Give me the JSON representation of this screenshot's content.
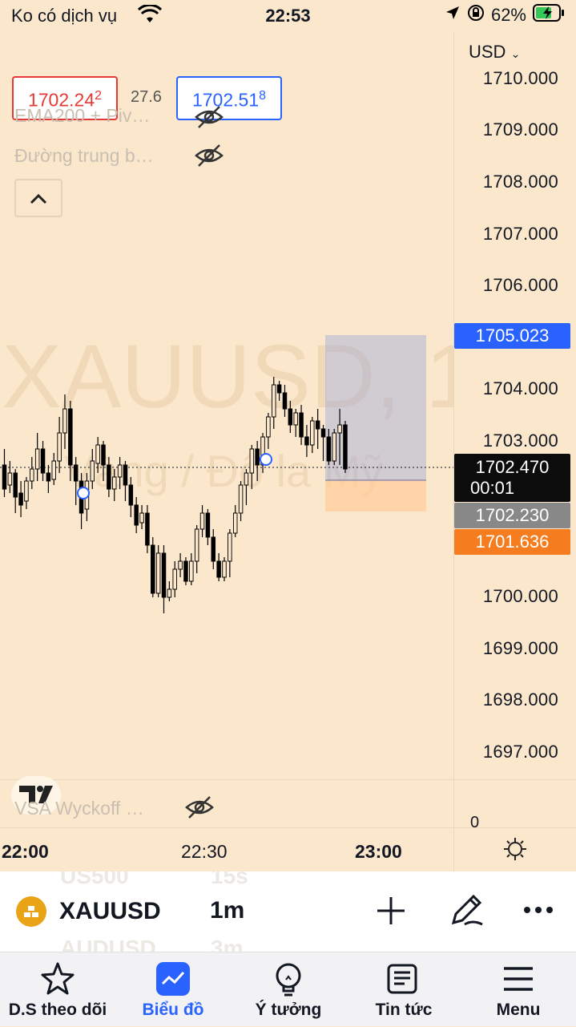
{
  "status_bar": {
    "carrier": "Ko có dịch vụ",
    "time": "22:53",
    "battery": "62%"
  },
  "chart": {
    "watermark_symbol": "XAUUSD, 1",
    "watermark_desc": "Vàng / Đô la Mỹ",
    "bid": {
      "main": "1702.24",
      "small": "2"
    },
    "spread": "27.6",
    "ask": {
      "main": "1702.51",
      "small": "8"
    },
    "indicators": [
      {
        "label": "EMA200 + Piv…"
      },
      {
        "label": "Đường trung b…"
      }
    ],
    "bottom_indicator": "VSA Wyckoff …",
    "pane_zero": "0",
    "currency": "USD",
    "price_ticks": [
      "1710.000",
      "1709.000",
      "1708.000",
      "1707.000",
      "1706.000",
      "1704.000",
      "1703.000",
      "1700.000",
      "1699.000",
      "1698.000",
      "1697.000"
    ],
    "labels": {
      "target": "1705.023",
      "last": "1702.470",
      "countdown": "00:01",
      "bid_line": "1702.230",
      "stop": "1701.636"
    },
    "time_ticks": [
      "22:00",
      "22:30",
      "23:00"
    ]
  },
  "toolbar": {
    "symbol": "XAUUSD",
    "interval": "1m",
    "ghost_above_symbol": "US500",
    "ghost_above_interval": "15s",
    "ghost_below_symbol": "AUDUSD",
    "ghost_below_interval": "3m"
  },
  "tabs": [
    {
      "label": "D.S theo dõi"
    },
    {
      "label": "Biểu đồ"
    },
    {
      "label": "Ý tưởng"
    },
    {
      "label": "Tin tức"
    },
    {
      "label": "Menu"
    }
  ],
  "colors": {
    "background": "#fae7cc",
    "accent": "#2962ff",
    "target_label": "#2962ff",
    "stop_label": "#f57c1f",
    "bid_label": "#888888",
    "candle": "#000000",
    "bid_box_border": "#e53935",
    "ask_box_border": "#2962ff"
  }
}
